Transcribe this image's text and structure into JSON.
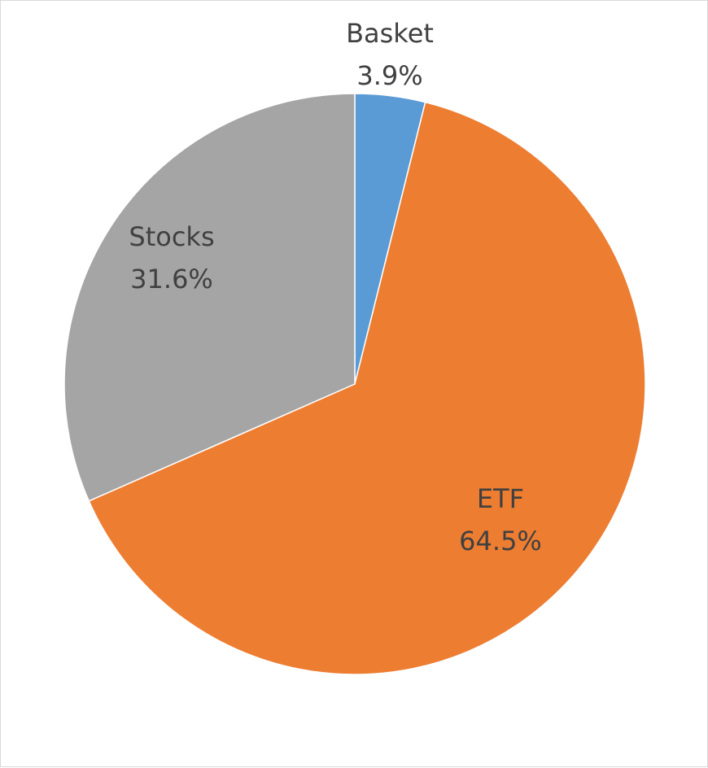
{
  "chart_data": {
    "type": "pie",
    "title": "",
    "categories": [
      "Basket",
      "ETF",
      "Stocks"
    ],
    "values": [
      3.9,
      64.5,
      31.6
    ],
    "labels": [
      "3.9%",
      "64.5%",
      "31.6%"
    ],
    "colors": [
      "#5b9bd5",
      "#ed7d31",
      "#a5a5a5"
    ],
    "start_angle_deg": 0,
    "direction": "clockwise",
    "legend": "none"
  }
}
